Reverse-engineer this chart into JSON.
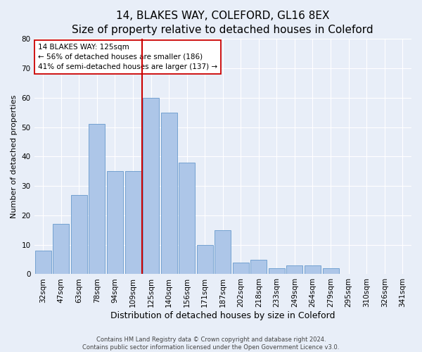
{
  "title": "14, BLAKES WAY, COLEFORD, GL16 8EX",
  "subtitle": "Size of property relative to detached houses in Coleford",
  "xlabel": "Distribution of detached houses by size in Coleford",
  "ylabel": "Number of detached properties",
  "categories": [
    "32sqm",
    "47sqm",
    "63sqm",
    "78sqm",
    "94sqm",
    "109sqm",
    "125sqm",
    "140sqm",
    "156sqm",
    "171sqm",
    "187sqm",
    "202sqm",
    "218sqm",
    "233sqm",
    "249sqm",
    "264sqm",
    "279sqm",
    "295sqm",
    "310sqm",
    "326sqm",
    "341sqm"
  ],
  "values": [
    8,
    17,
    27,
    51,
    35,
    35,
    60,
    55,
    38,
    10,
    15,
    4,
    5,
    2,
    3,
    3,
    2,
    0,
    0,
    0,
    0
  ],
  "highlight_index": 6,
  "bar_color": "#adc6e8",
  "bar_edge_color": "#6699cc",
  "highlight_line_color": "#cc0000",
  "ylim": [
    0,
    80
  ],
  "yticks": [
    0,
    10,
    20,
    30,
    40,
    50,
    60,
    70,
    80
  ],
  "annotation_text": "14 BLAKES WAY: 125sqm\n← 56% of detached houses are smaller (186)\n41% of semi-detached houses are larger (137) →",
  "annotation_box_color": "#ffffff",
  "annotation_box_edge_color": "#cc0000",
  "footer_line1": "Contains HM Land Registry data © Crown copyright and database right 2024.",
  "footer_line2": "Contains public sector information licensed under the Open Government Licence v3.0.",
  "background_color": "#e8eef8",
  "grid_color": "#ffffff",
  "title_fontsize": 11,
  "xlabel_fontsize": 9,
  "ylabel_fontsize": 8,
  "tick_fontsize": 7.5,
  "annotation_fontsize": 7.5,
  "footer_fontsize": 6
}
